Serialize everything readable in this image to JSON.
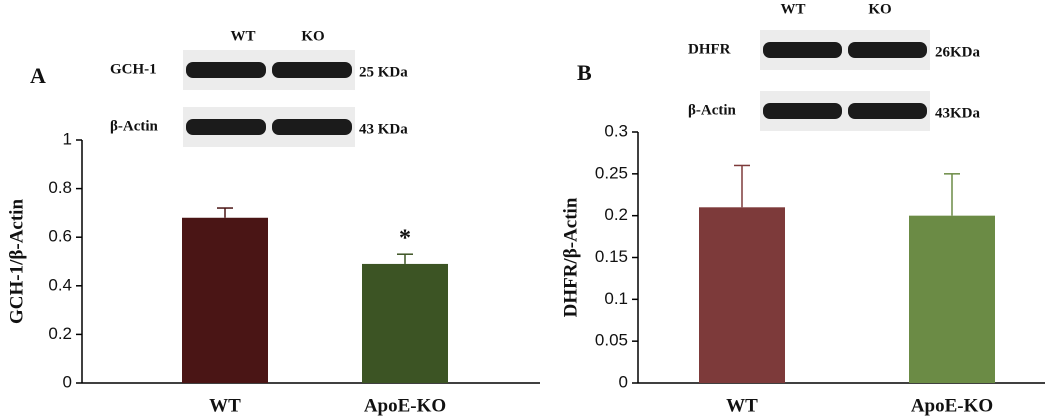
{
  "chart_data": [
    {
      "type": "bar",
      "panel_label": "A",
      "ylabel": "GCH-1/β-Actin",
      "categories": [
        "WT",
        "ApoE-KO"
      ],
      "values": [
        0.68,
        0.49
      ],
      "errors": [
        0.04,
        0.04
      ],
      "colors": [
        "#4a1515",
        "#3c5424"
      ],
      "significance": [
        null,
        "*"
      ],
      "ylim": [
        0,
        1
      ],
      "yticks": [
        0,
        0.2,
        0.4,
        0.6,
        0.8,
        1
      ],
      "blot": {
        "lanes": [
          "WT",
          "KO"
        ],
        "rows": [
          {
            "name": "GCH-1",
            "size": "25 KDa"
          },
          {
            "name": "β-Actin",
            "size": "43 KDa"
          }
        ]
      }
    },
    {
      "type": "bar",
      "panel_label": "B",
      "ylabel": "DHFR/β-Actin",
      "categories": [
        "WT",
        "ApoE-KO"
      ],
      "values": [
        0.21,
        0.2
      ],
      "errors": [
        0.05,
        0.05
      ],
      "colors": [
        "#7d3a3a",
        "#6b8b45"
      ],
      "significance": [
        null,
        null
      ],
      "ylim": [
        0,
        0.3
      ],
      "yticks": [
        0,
        0.05,
        0.1,
        0.15,
        0.2,
        0.25,
        0.3
      ],
      "blot": {
        "lanes": [
          "WT",
          "KO"
        ],
        "rows": [
          {
            "name": "DHFR",
            "size": "26KDa"
          },
          {
            "name": "β-Actin",
            "size": "43KDa"
          }
        ]
      }
    }
  ]
}
